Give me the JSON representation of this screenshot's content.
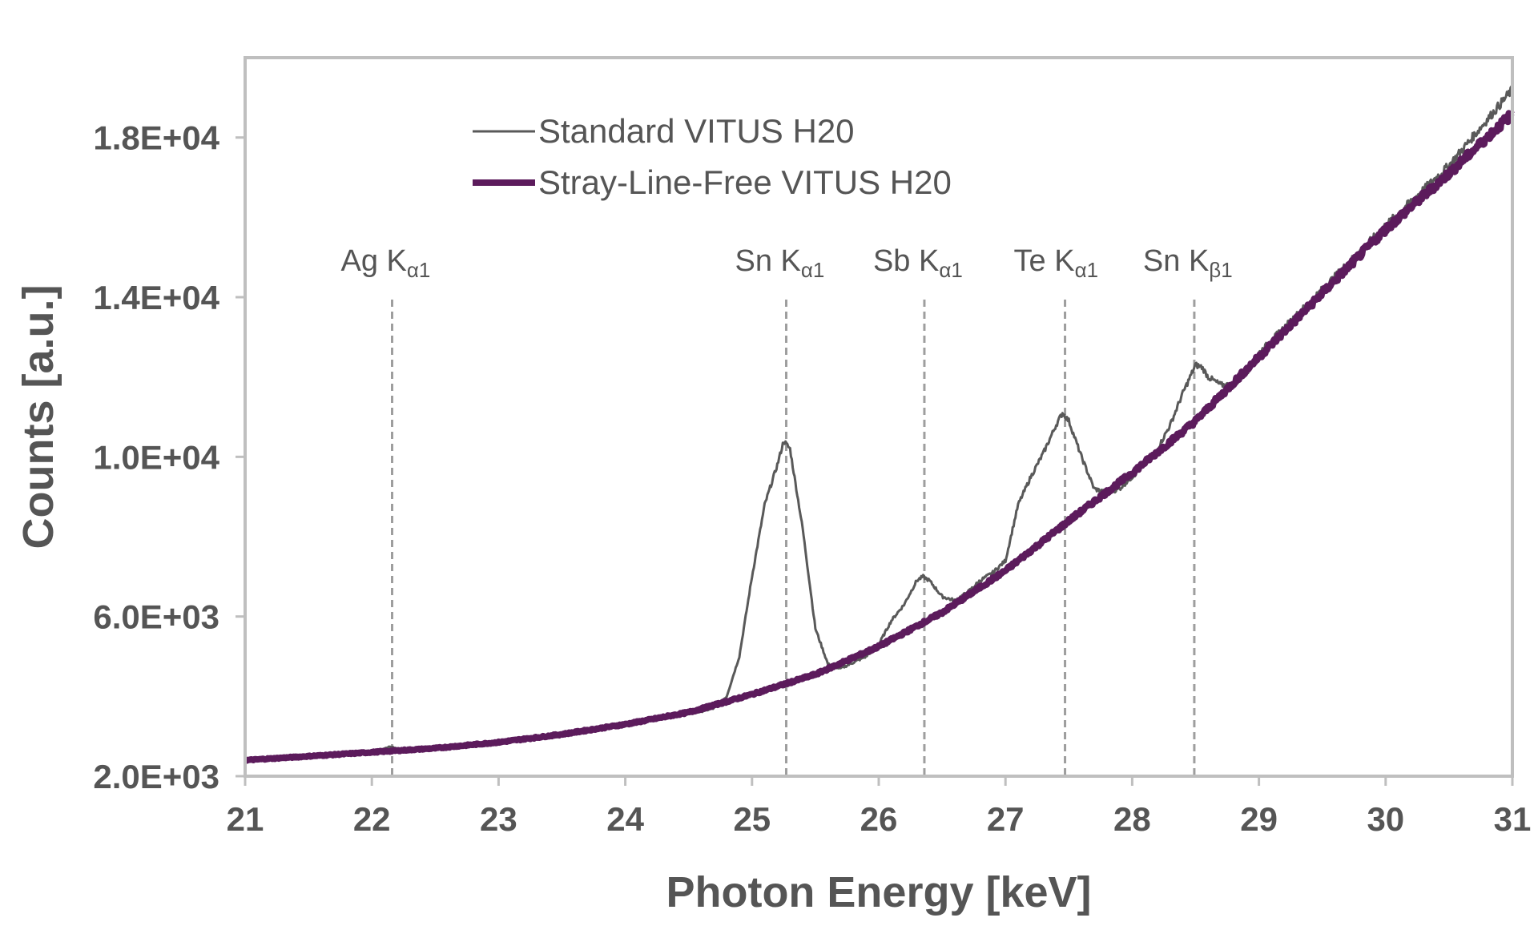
{
  "chart_data": {
    "type": "line",
    "xlabel": "Photon Energy [keV]",
    "ylabel": "Counts [a.u.]",
    "xlim": [
      21,
      31
    ],
    "ylim": [
      2000,
      20000
    ],
    "x_ticks": [
      "21",
      "22",
      "23",
      "24",
      "25",
      "26",
      "27",
      "28",
      "29",
      "30",
      "31"
    ],
    "y_ticks": [
      "2.0E+03",
      "6.0E+03",
      "1.0E+04",
      "1.4E+04",
      "1.8E+04"
    ],
    "y_tick_values": [
      2000,
      6000,
      10000,
      14000,
      18000
    ],
    "grid": false,
    "legend_position": "top-left",
    "series": [
      {
        "name": "Standard VITUS H20",
        "color": "#595959",
        "x": [
          21.0,
          21.5,
          22.0,
          22.1,
          22.15,
          22.2,
          22.3,
          22.5,
          23.0,
          23.5,
          24.0,
          24.5,
          24.7,
          24.8,
          24.9,
          25.0,
          25.1,
          25.2,
          25.25,
          25.3,
          25.4,
          25.5,
          25.6,
          25.7,
          25.8,
          25.9,
          26.0,
          26.1,
          26.2,
          26.3,
          26.35,
          26.4,
          26.5,
          26.6,
          26.7,
          26.8,
          26.9,
          27.0,
          27.1,
          27.2,
          27.3,
          27.4,
          27.45,
          27.5,
          27.6,
          27.7,
          27.8,
          27.9,
          28.0,
          28.1,
          28.2,
          28.3,
          28.4,
          28.5,
          28.55,
          28.6,
          28.7,
          28.8,
          28.9,
          29.0,
          29.5,
          30.0,
          30.5,
          31.0
        ],
        "y": [
          2400,
          2500,
          2620,
          2700,
          2740,
          2680,
          2660,
          2720,
          2850,
          3050,
          3300,
          3550,
          3700,
          4000,
          5000,
          7000,
          8800,
          9800,
          10400,
          10200,
          8200,
          5700,
          4800,
          4700,
          4850,
          5000,
          5300,
          5900,
          6300,
          6900,
          7000,
          6900,
          6500,
          6400,
          6600,
          6900,
          7100,
          7400,
          8800,
          9500,
          10100,
          10800,
          11100,
          10900,
          10000,
          9200,
          9100,
          9200,
          9500,
          9800,
          10200,
          10800,
          11600,
          12300,
          12250,
          12000,
          11800,
          11800,
          12100,
          12600,
          14200,
          15800,
          17300,
          19200
        ]
      },
      {
        "name": "Stray-Line-Free VITUS H20",
        "color": "#5c1b5c",
        "x": [
          21.0,
          21.5,
          22.0,
          22.5,
          23.0,
          23.5,
          24.0,
          24.5,
          25.0,
          25.5,
          26.0,
          26.5,
          27.0,
          27.5,
          28.0,
          28.5,
          29.0,
          29.5,
          30.0,
          30.5,
          31.0
        ],
        "y": [
          2400,
          2500,
          2600,
          2700,
          2850,
          3050,
          3300,
          3600,
          4050,
          4550,
          5250,
          6100,
          7150,
          8400,
          9600,
          10900,
          12500,
          14100,
          15700,
          17100,
          18600
        ]
      }
    ],
    "annotations": [
      {
        "main": "Ag K",
        "sub": "α1",
        "x": 22.16
      },
      {
        "main": "Sn K",
        "sub": "α1",
        "x": 25.27
      },
      {
        "main": "Sb K",
        "sub": "α1",
        "x": 26.36
      },
      {
        "main": "Te K",
        "sub": "α1",
        "x": 27.47
      },
      {
        "main": "Sn K",
        "sub": "β1",
        "x": 28.49
      }
    ]
  }
}
